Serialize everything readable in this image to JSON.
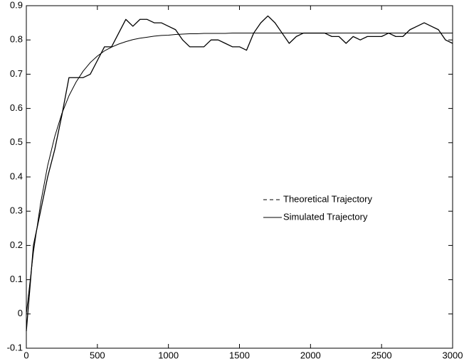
{
  "chart_data": {
    "type": "line",
    "x": [
      0,
      50,
      100,
      150,
      200,
      250,
      300,
      350,
      400,
      450,
      500,
      550,
      600,
      650,
      700,
      750,
      800,
      850,
      900,
      950,
      1000,
      1050,
      1100,
      1150,
      1200,
      1250,
      1300,
      1350,
      1400,
      1450,
      1500,
      1550,
      1600,
      1650,
      1700,
      1750,
      1800,
      1850,
      1900,
      1950,
      2000,
      2050,
      2100,
      2150,
      2200,
      2250,
      2300,
      2350,
      2400,
      2450,
      2500,
      2550,
      2600,
      2650,
      2700,
      2750,
      2800,
      2850,
      2900,
      2950,
      3000
    ],
    "series": [
      {
        "name": "Theoretical Trajectory",
        "color": "#000000",
        "values": [
          0,
          0.181,
          0.322,
          0.433,
          0.518,
          0.585,
          0.637,
          0.677,
          0.709,
          0.734,
          0.753,
          0.768,
          0.779,
          0.788,
          0.795,
          0.801,
          0.805,
          0.808,
          0.811,
          0.813,
          0.814,
          0.816,
          0.817,
          0.818,
          0.818,
          0.819,
          0.819,
          0.819,
          0.819,
          0.82,
          0.82,
          0.82,
          0.82,
          0.82,
          0.82,
          0.82,
          0.82,
          0.82,
          0.82,
          0.82,
          0.82,
          0.82,
          0.82,
          0.82,
          0.82,
          0.82,
          0.82,
          0.82,
          0.82,
          0.82,
          0.82,
          0.82,
          0.82,
          0.82,
          0.82,
          0.82,
          0.82,
          0.82,
          0.82,
          0.82,
          0.82
        ]
      },
      {
        "name": "Simulated Trajectory",
        "color": "#000000",
        "values": [
          -0.05,
          0.2,
          0.3,
          0.4,
          0.48,
          0.58,
          0.69,
          0.69,
          0.69,
          0.7,
          0.74,
          0.78,
          0.78,
          0.82,
          0.86,
          0.84,
          0.86,
          0.86,
          0.85,
          0.85,
          0.84,
          0.83,
          0.8,
          0.78,
          0.78,
          0.78,
          0.8,
          0.8,
          0.79,
          0.78,
          0.78,
          0.77,
          0.82,
          0.85,
          0.87,
          0.85,
          0.82,
          0.79,
          0.81,
          0.82,
          0.82,
          0.82,
          0.82,
          0.81,
          0.81,
          0.79,
          0.81,
          0.8,
          0.81,
          0.81,
          0.81,
          0.82,
          0.81,
          0.81,
          0.83,
          0.84,
          0.85,
          0.84,
          0.83,
          0.8,
          0.79
        ]
      }
    ],
    "xlim": [
      0,
      3000
    ],
    "xticks": [
      0,
      500,
      1000,
      1500,
      2000,
      2500,
      3000
    ],
    "ylim": [
      -0.1,
      0.9
    ],
    "yticks": [
      -0.1,
      0,
      0.1,
      0.2,
      0.3,
      0.4,
      0.5,
      0.6,
      0.7,
      0.8,
      0.9
    ],
    "grid": false
  }
}
